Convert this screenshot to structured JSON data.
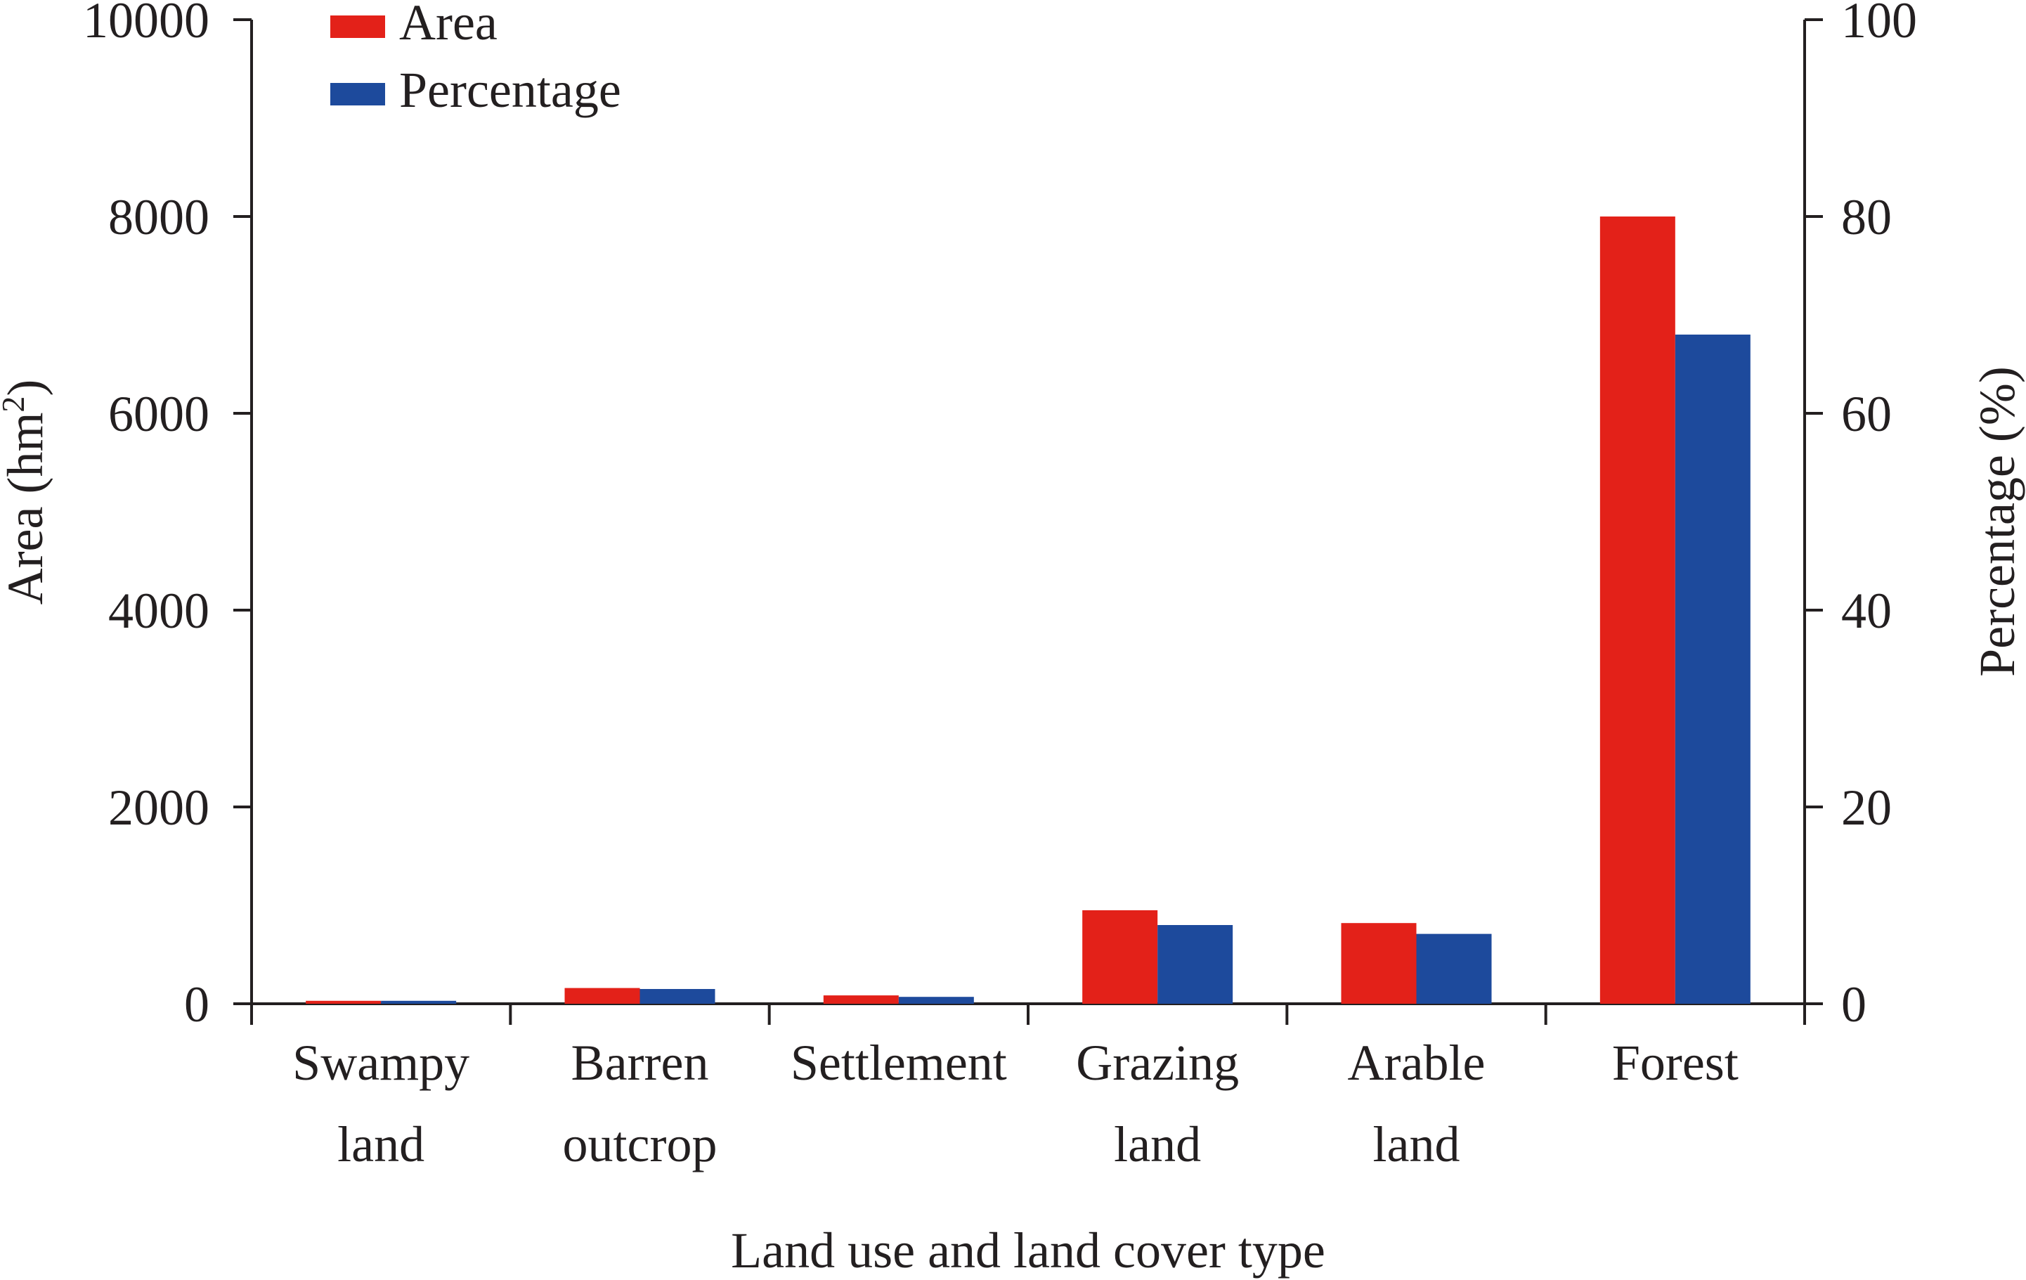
{
  "chart_data": {
    "type": "bar",
    "categories": [
      [
        "Swampy",
        "land"
      ],
      [
        "Barren",
        "outcrop"
      ],
      [
        "Settlement"
      ],
      [
        "Grazing",
        "land"
      ],
      [
        "Arable",
        "land"
      ],
      [
        "Forest"
      ]
    ],
    "series": [
      {
        "name": "Area",
        "axis": "left",
        "color": "#e32119",
        "values": [
          30,
          160,
          85,
          950,
          820,
          8000
        ]
      },
      {
        "name": "Percentage",
        "axis": "right",
        "color": "#1d4a9c",
        "values": [
          0.3,
          1.5,
          0.7,
          8.0,
          7.1,
          68.0
        ]
      }
    ],
    "xlabel": "Land use and land cover type",
    "ylabel_left": "Area (hm",
    "ylabel_left_sup": "2",
    "ylabel_left_end": ")",
    "ylabel_right": "Percentage (%)",
    "ylim_left": [
      0,
      10000
    ],
    "ylim_right": [
      0,
      100
    ],
    "yticks_left": [
      0,
      2000,
      4000,
      6000,
      8000,
      10000
    ],
    "yticks_right": [
      0,
      20,
      40,
      60,
      80,
      100
    ],
    "grid": false,
    "legend_position": "top-left"
  }
}
